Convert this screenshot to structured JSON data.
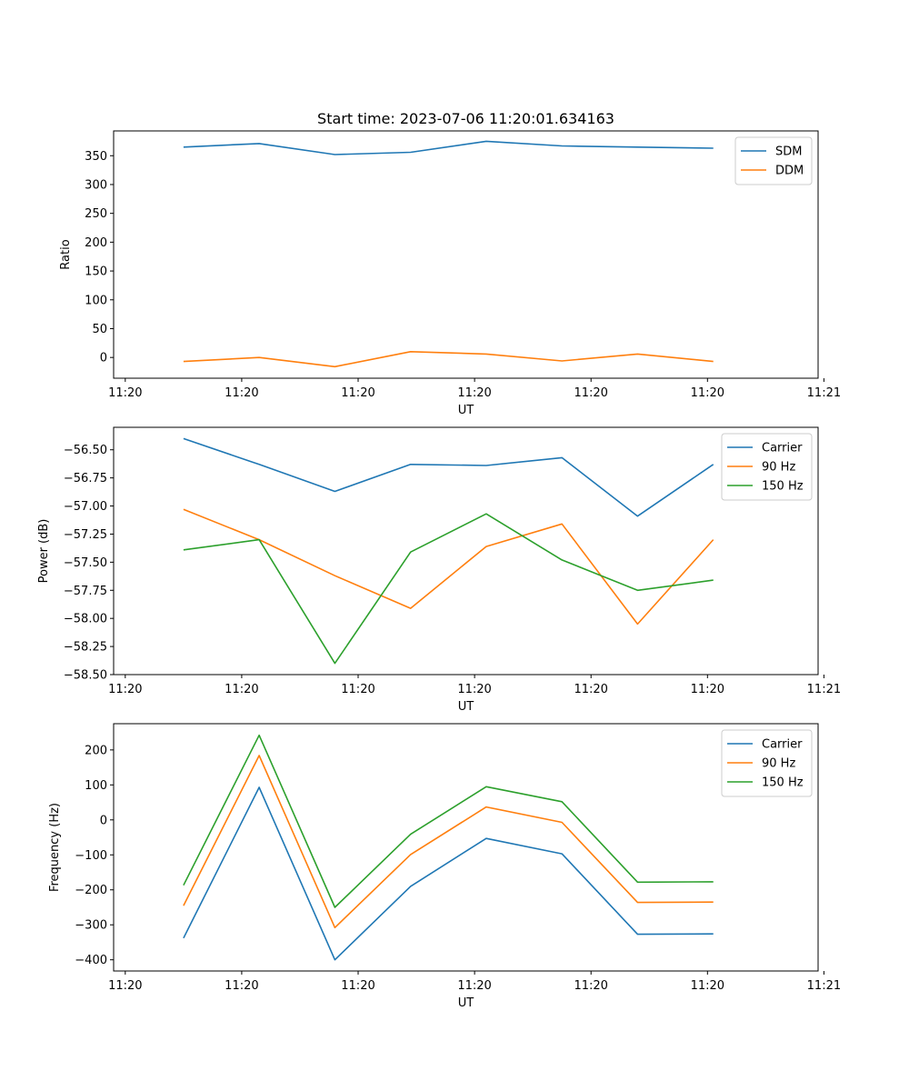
{
  "colors": {
    "blue": "#1f77b4",
    "orange": "#ff7f0e",
    "green": "#2ca02c"
  },
  "chart_data": [
    {
      "type": "line",
      "title": "Start time: 2023-07-06 11:20:01.634163",
      "xlabel": "UT",
      "ylabel": "Ratio",
      "x": [
        0.5,
        1.15,
        1.8,
        2.45,
        3.1,
        3.75,
        4.4,
        5.05
      ],
      "xlim": [
        -0.1,
        5.95
      ],
      "xticks": [
        0,
        1,
        2,
        3,
        4,
        5,
        6
      ],
      "xtick_labels": [
        "11:20",
        "11:20",
        "11:20",
        "11:20",
        "11:20",
        "11:20",
        "11:21"
      ],
      "ylim": [
        -36,
        393
      ],
      "yticks": [
        0,
        50,
        100,
        150,
        200,
        250,
        300,
        350
      ],
      "ytick_labels": [
        "0",
        "50",
        "100",
        "150",
        "200",
        "250",
        "300",
        "350"
      ],
      "legend_position": "top-right",
      "series": [
        {
          "name": "SDM",
          "color": "#1f77b4",
          "values": [
            365,
            371,
            352,
            356,
            375,
            367,
            365,
            363
          ]
        },
        {
          "name": "DDM",
          "color": "#ff7f0e",
          "values": [
            -7,
            0,
            -16,
            10,
            6,
            -6,
            6,
            -7
          ]
        }
      ]
    },
    {
      "type": "line",
      "title": "",
      "xlabel": "UT",
      "ylabel": "Power (dB)",
      "x": [
        0.5,
        1.15,
        1.8,
        2.45,
        3.1,
        3.75,
        4.4,
        5.05
      ],
      "xlim": [
        -0.1,
        5.95
      ],
      "xticks": [
        0,
        1,
        2,
        3,
        4,
        5,
        6
      ],
      "xtick_labels": [
        "11:20",
        "11:20",
        "11:20",
        "11:20",
        "11:20",
        "11:20",
        "11:21"
      ],
      "ylim": [
        -58.5,
        -56.3
      ],
      "yticks": [
        -58.5,
        -58.25,
        -58.0,
        -57.75,
        -57.5,
        -57.25,
        -57.0,
        -56.75,
        -56.5
      ],
      "ytick_labels": [
        "−58.50",
        "−58.25",
        "−58.00",
        "−57.75",
        "−57.50",
        "−57.25",
        "−57.00",
        "−56.75",
        "−56.50"
      ],
      "legend_position": "top-right",
      "series": [
        {
          "name": "Carrier",
          "color": "#1f77b4",
          "values": [
            -56.4,
            -56.63,
            -56.87,
            -56.63,
            -56.64,
            -56.57,
            -57.09,
            -56.63
          ]
        },
        {
          "name": "90 Hz",
          "color": "#ff7f0e",
          "values": [
            -57.03,
            -57.3,
            -57.62,
            -57.91,
            -57.36,
            -57.16,
            -58.05,
            -57.3
          ]
        },
        {
          "name": "150 Hz",
          "color": "#2ca02c",
          "values": [
            -57.39,
            -57.3,
            -58.4,
            -57.41,
            -57.07,
            -57.48,
            -57.75,
            -57.66
          ]
        }
      ]
    },
    {
      "type": "line",
      "title": "",
      "xlabel": "UT",
      "ylabel": "Frequency (Hz)",
      "x": [
        0.5,
        1.15,
        1.8,
        2.45,
        3.1,
        3.75,
        4.4,
        5.05
      ],
      "xlim": [
        -0.1,
        5.95
      ],
      "xticks": [
        0,
        1,
        2,
        3,
        4,
        5,
        6
      ],
      "xtick_labels": [
        "11:20",
        "11:20",
        "11:20",
        "11:20",
        "11:20",
        "11:20",
        "11:21"
      ],
      "ylim": [
        -432,
        275
      ],
      "yticks": [
        -400,
        -300,
        -200,
        -100,
        0,
        100,
        200
      ],
      "ytick_labels": [
        "−400",
        "−300",
        "−200",
        "−100",
        "0",
        "100",
        "200"
      ],
      "legend_position": "top-right",
      "series": [
        {
          "name": "Carrier",
          "color": "#1f77b4",
          "values": [
            -338,
            93,
            -400,
            -190,
            -53,
            -97,
            -327,
            -326
          ]
        },
        {
          "name": "90 Hz",
          "color": "#ff7f0e",
          "values": [
            -245,
            184,
            -308,
            -99,
            37,
            -7,
            -236,
            -235
          ]
        },
        {
          "name": "150 Hz",
          "color": "#2ca02c",
          "values": [
            -187,
            242,
            -250,
            -41,
            95,
            52,
            -178,
            -177
          ]
        }
      ]
    }
  ]
}
